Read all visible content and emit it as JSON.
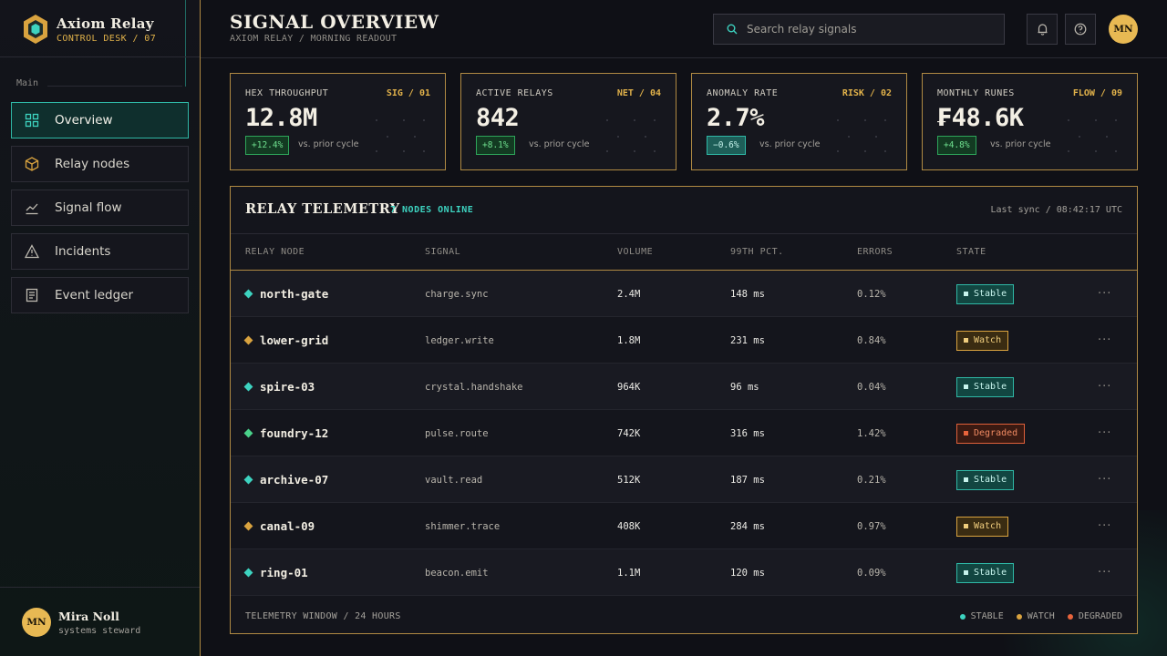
{
  "brand": {
    "name": "Axiom Relay",
    "sub": "CONTROL DESK / 07"
  },
  "sidebar": {
    "section": "Main",
    "items": [
      {
        "label": "Overview",
        "icon": "grid-icon",
        "active": true
      },
      {
        "label": "Relay nodes",
        "icon": "hexagon-cube-icon",
        "active": false
      },
      {
        "label": "Signal flow",
        "icon": "line-chart-icon",
        "active": false
      },
      {
        "label": "Incidents",
        "icon": "warning-triangle-icon",
        "active": false
      },
      {
        "label": "Event ledger",
        "icon": "document-icon",
        "active": false
      }
    ],
    "user": {
      "initials": "MN",
      "name": "Mira Noll",
      "role": "systems steward"
    }
  },
  "header": {
    "title": "SIGNAL OVERVIEW",
    "crumb": "AXIOM RELAY / MORNING READOUT",
    "search_placeholder": "Search relay signals",
    "avatar_initials": "MN"
  },
  "kpis": [
    {
      "label": "HEX THROUGHPUT",
      "tag": "SIG / 01",
      "value": "12.8M",
      "delta": "+12.4%",
      "delta_style": "green",
      "prior": "vs. prior cycle"
    },
    {
      "label": "ACTIVE RELAYS",
      "tag": "NET / 04",
      "value": "842",
      "delta": "+8.1%",
      "delta_style": "green",
      "prior": "vs. prior cycle"
    },
    {
      "label": "ANOMALY RATE",
      "tag": "RISK / 02",
      "value": "2.7%",
      "delta": "−0.6%",
      "delta_style": "teal",
      "prior": "vs. prior cycle"
    },
    {
      "label": "MONTHLY RUNES",
      "tag": "FLOW / 09",
      "value": "₣48.6K",
      "delta": "+4.8%",
      "delta_style": "green",
      "prior": "vs. prior cycle"
    }
  ],
  "telemetry": {
    "title": "RELAY TELEMETRY",
    "online": "7 NODES ONLINE",
    "sync": "Last sync / 08:42:17 UTC",
    "columns": [
      "RELAY NODE",
      "SIGNAL",
      "VOLUME",
      "99TH PCT.",
      "ERRORS",
      "STATE"
    ],
    "rows": [
      {
        "node": "north-gate",
        "signal": "charge.sync",
        "volume": "2.4M",
        "p99": "148 ms",
        "errors": "0.12%",
        "state": "Stable"
      },
      {
        "node": "lower-grid",
        "signal": "ledger.write",
        "volume": "1.8M",
        "p99": "231 ms",
        "errors": "0.84%",
        "state": "Watch"
      },
      {
        "node": "spire-03",
        "signal": "crystal.handshake",
        "volume": "964K",
        "p99": "96 ms",
        "errors": "0.04%",
        "state": "Stable"
      },
      {
        "node": "foundry-12",
        "signal": "pulse.route",
        "volume": "742K",
        "p99": "316 ms",
        "errors": "1.42%",
        "state": "Degraded"
      },
      {
        "node": "archive-07",
        "signal": "vault.read",
        "volume": "512K",
        "p99": "187 ms",
        "errors": "0.21%",
        "state": "Stable"
      },
      {
        "node": "canal-09",
        "signal": "shimmer.trace",
        "volume": "408K",
        "p99": "284 ms",
        "errors": "0.97%",
        "state": "Watch"
      },
      {
        "node": "ring-01",
        "signal": "beacon.emit",
        "volume": "1.1M",
        "p99": "120 ms",
        "errors": "0.09%",
        "state": "Stable"
      }
    ],
    "footer": "TELEMETRY WINDOW / 24 HOURS",
    "legend": [
      "STABLE",
      "WATCH",
      "DEGRADED"
    ]
  },
  "colors": {
    "gold": "#b08a43",
    "teal": "#2fb8a6",
    "watch": "#d9a33f",
    "degraded": "#e0603a",
    "node_stable": "#3dd3c0",
    "node_watch": "#d9a33f",
    "node_degraded": "#4ad28a"
  }
}
